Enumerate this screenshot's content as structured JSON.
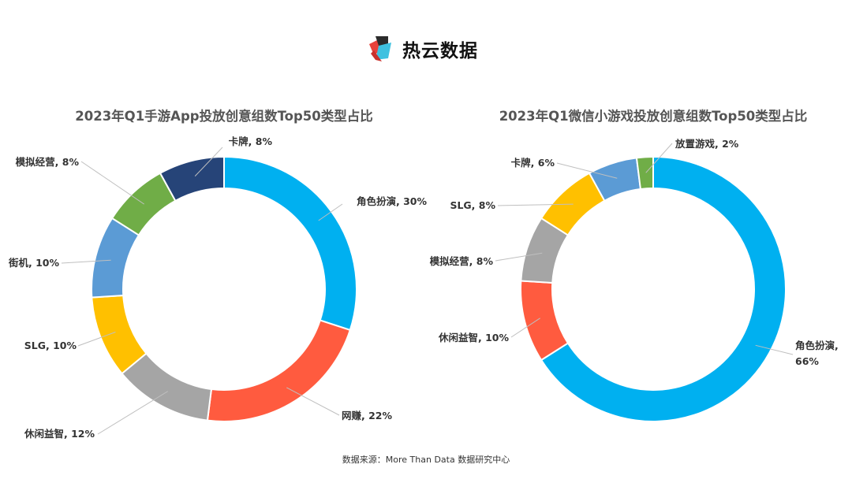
{
  "logo": {
    "text": "热云数据",
    "icon": "reyun-cube-logo",
    "colors": [
      "#e8413a",
      "#2b2b2b",
      "#3fc1e0"
    ]
  },
  "chart_data": [
    {
      "type": "pie",
      "title": "2023年Q1手游App投放创意组数Top50类型占比",
      "categories": [
        "角色扮演",
        "网赚",
        "休闲益智",
        "SLG",
        "街机",
        "模拟经营",
        "卡牌"
      ],
      "values": [
        30,
        22,
        12,
        10,
        10,
        8,
        8
      ],
      "labels": [
        "角色扮演, 30%",
        "网赚, 22%",
        "休闲益智, 12%",
        "SLG, 10%",
        "街机, 10%",
        "模拟经营, 8%",
        "卡牌, 8%"
      ],
      "colors": [
        "#00b0f0",
        "#ff5b3f",
        "#a5a5a5",
        "#ffc000",
        "#5b9bd5",
        "#70ad47",
        "#264478"
      ],
      "style": "donut"
    },
    {
      "type": "pie",
      "title": "2023年Q1微信小游戏投放创意组数Top50类型占比",
      "categories": [
        "角色扮演",
        "休闲益智",
        "模拟经营",
        "SLG",
        "卡牌",
        "放置游戏"
      ],
      "values": [
        66,
        10,
        8,
        8,
        6,
        2
      ],
      "labels": [
        [
          "角色扮演,",
          "66%"
        ],
        [
          "休闲益智, 10%"
        ],
        [
          "模拟经营, 8%"
        ],
        [
          "SLG, 8%"
        ],
        [
          "卡牌, 6%"
        ],
        [
          "放置游戏, 2%"
        ]
      ],
      "colors": [
        "#00b0f0",
        "#ff5b3f",
        "#a5a5a5",
        "#ffc000",
        "#5b9bd5",
        "#70ad47"
      ],
      "style": "donut"
    }
  ],
  "source": "数据来源：More Than Data 数据研究中心"
}
